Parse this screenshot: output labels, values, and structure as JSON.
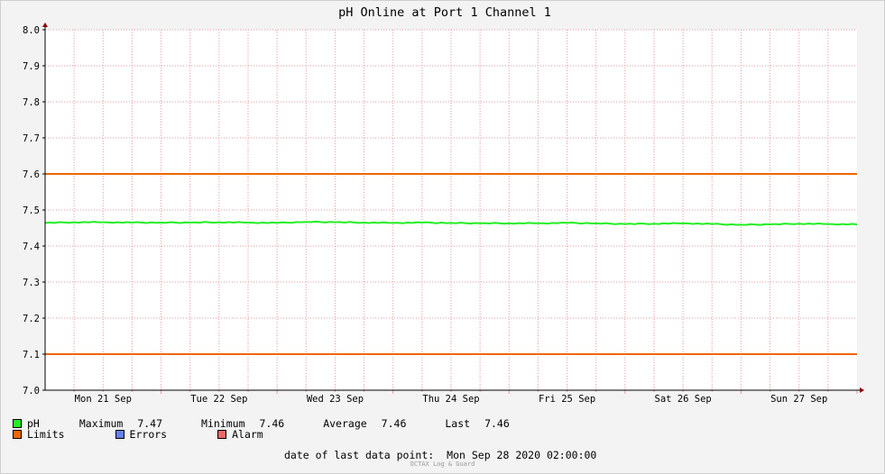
{
  "colors": {
    "background": "#f3f3f3",
    "plot_background": "#ffffff",
    "grid": "#e69a9a",
    "series_ph": "#22ee22",
    "limits": "#ee6600",
    "errors": "#6680ee",
    "alarm": "#ee6666",
    "arrow": "#880000"
  },
  "chart_data": {
    "type": "line",
    "title": "pH Online at Port 1 Channel 1",
    "ylim": [
      7.0,
      8.0
    ],
    "y_ticks": [
      "7.0",
      "7.1",
      "7.2",
      "7.3",
      "7.4",
      "7.5",
      "7.6",
      "7.7",
      "7.8",
      "7.9",
      "8.0"
    ],
    "x_day_labels": [
      "Mon 21 Sep",
      "Tue 22 Sep",
      "Wed 23 Sep",
      "Thu 24 Sep",
      "Fri 25 Sep",
      "Sat 26 Sep",
      "Sun 27 Sep"
    ],
    "x_range_days": [
      0,
      7
    ],
    "limits": [
      7.6,
      7.1
    ],
    "series": [
      {
        "name": "pH",
        "x": [
          0,
          0.25,
          0.5,
          0.75,
          1,
          1.25,
          1.5,
          1.75,
          2,
          2.25,
          2.5,
          2.75,
          3,
          3.25,
          3.5,
          3.75,
          4,
          4.25,
          4.5,
          4.75,
          5,
          5.25,
          5.5,
          5.75,
          6,
          6.25,
          6.5,
          6.75,
          7
        ],
        "values": [
          7.464,
          7.466,
          7.466,
          7.465,
          7.465,
          7.465,
          7.466,
          7.465,
          7.464,
          7.467,
          7.466,
          7.465,
          7.464,
          7.465,
          7.464,
          7.463,
          7.463,
          7.463,
          7.464,
          7.463,
          7.461,
          7.462,
          7.463,
          7.461,
          7.459,
          7.46,
          7.462,
          7.461,
          7.46
        ]
      }
    ]
  },
  "legend": {
    "ph_label": "pH",
    "max_label": "Maximum",
    "max_value": "7.47",
    "min_label": "Minimum",
    "min_value": "7.46",
    "avg_label": "Average",
    "avg_value": "7.46",
    "last_label": "Last",
    "last_value": "7.46",
    "limits_label": "Limits",
    "errors_label": "Errors",
    "alarm_label": "Alarm"
  },
  "footer": {
    "last_point_label": "date of last data point:",
    "last_point_value": "Mon Sep 28 2020 02:00:00",
    "watermark": "OCTAX Log & Guard"
  }
}
